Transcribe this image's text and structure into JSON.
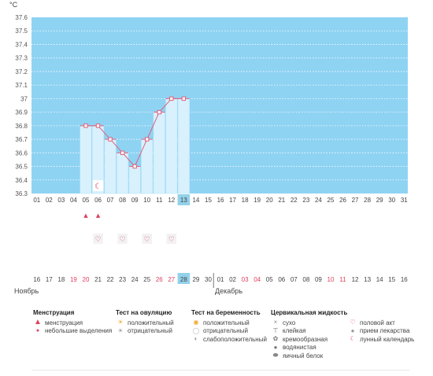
{
  "chart_data": {
    "type": "line",
    "unit_label": "°C",
    "ylim": [
      36.3,
      37.6
    ],
    "y_ticks": [
      "37.6",
      "37.5",
      "37.4",
      "37.3",
      "37.2",
      "37.1",
      "37",
      "36.9",
      "36.8",
      "36.7",
      "36.6",
      "36.5",
      "36.4",
      "36.3"
    ],
    "cycle_days": [
      "01",
      "02",
      "03",
      "04",
      "05",
      "06",
      "07",
      "08",
      "09",
      "10",
      "11",
      "12",
      "13",
      "14",
      "15",
      "16",
      "17",
      "18",
      "19",
      "20",
      "21",
      "22",
      "23",
      "24",
      "25",
      "26",
      "27",
      "28",
      "29",
      "30",
      "31"
    ],
    "highlight_day": "13",
    "series": [
      {
        "x": [
          "05",
          "06",
          "07",
          "08",
          "09",
          "10",
          "11",
          "12",
          "13"
        ],
        "values": [
          36.8,
          36.8,
          36.7,
          36.6,
          36.5,
          36.7,
          36.9,
          37.0,
          37.0
        ]
      }
    ],
    "moon_day": "06",
    "menstruation_days": [
      "05",
      "06"
    ],
    "intercourse_days": [
      "06",
      "08",
      "10",
      "12"
    ],
    "dates": [
      {
        "t": "16",
        "weekend": false
      },
      {
        "t": "17",
        "weekend": false
      },
      {
        "t": "18",
        "weekend": false
      },
      {
        "t": "19",
        "weekend": true
      },
      {
        "t": "20",
        "weekend": true
      },
      {
        "t": "21",
        "weekend": false
      },
      {
        "t": "22",
        "weekend": false
      },
      {
        "t": "23",
        "weekend": false
      },
      {
        "t": "24",
        "weekend": false
      },
      {
        "t": "25",
        "weekend": false
      },
      {
        "t": "26",
        "weekend": true
      },
      {
        "t": "27",
        "weekend": true
      },
      {
        "t": "28",
        "weekend": false,
        "today": true
      },
      {
        "t": "29",
        "weekend": false
      },
      {
        "t": "30",
        "weekend": false
      },
      {
        "t": "01",
        "weekend": false
      },
      {
        "t": "02",
        "weekend": false
      },
      {
        "t": "03",
        "weekend": true
      },
      {
        "t": "04",
        "weekend": true
      },
      {
        "t": "05",
        "weekend": false
      },
      {
        "t": "06",
        "weekend": false
      },
      {
        "t": "07",
        "weekend": false
      },
      {
        "t": "08",
        "weekend": false
      },
      {
        "t": "09",
        "weekend": false
      },
      {
        "t": "10",
        "weekend": true
      },
      {
        "t": "11",
        "weekend": true
      },
      {
        "t": "12",
        "weekend": false
      },
      {
        "t": "13",
        "weekend": false
      },
      {
        "t": "14",
        "weekend": false
      },
      {
        "t": "15",
        "weekend": false
      },
      {
        "t": "16",
        "weekend": false
      }
    ],
    "month_november": "Ноябрь",
    "month_december": "Декабрь",
    "colors": {
      "plot_bg": "#8fd3f3",
      "bar_fill": "#d8f1fd",
      "line": "#e0607e",
      "highlight": "#93d1ea",
      "weekend": "#e0405e"
    }
  },
  "legend": {
    "menstruation": {
      "title": "Менструация",
      "items": [
        "менструация",
        "небольшие выделения"
      ]
    },
    "ovulation": {
      "title": "Тест на овуляцию",
      "items": [
        "положительный",
        "отрицательный"
      ]
    },
    "pregnancy": {
      "title": "Тест на беременность",
      "items": [
        "положительный",
        "отрицательный",
        "слабоположительный"
      ]
    },
    "cervical": {
      "title": "Цервикальная жидкость",
      "items": [
        "сухо",
        "клейкая",
        "кремообразная",
        "водянистая",
        "яичный белок"
      ]
    },
    "other": {
      "items": [
        "половой акт",
        "прием лекарства",
        "лунный календарь"
      ]
    }
  }
}
